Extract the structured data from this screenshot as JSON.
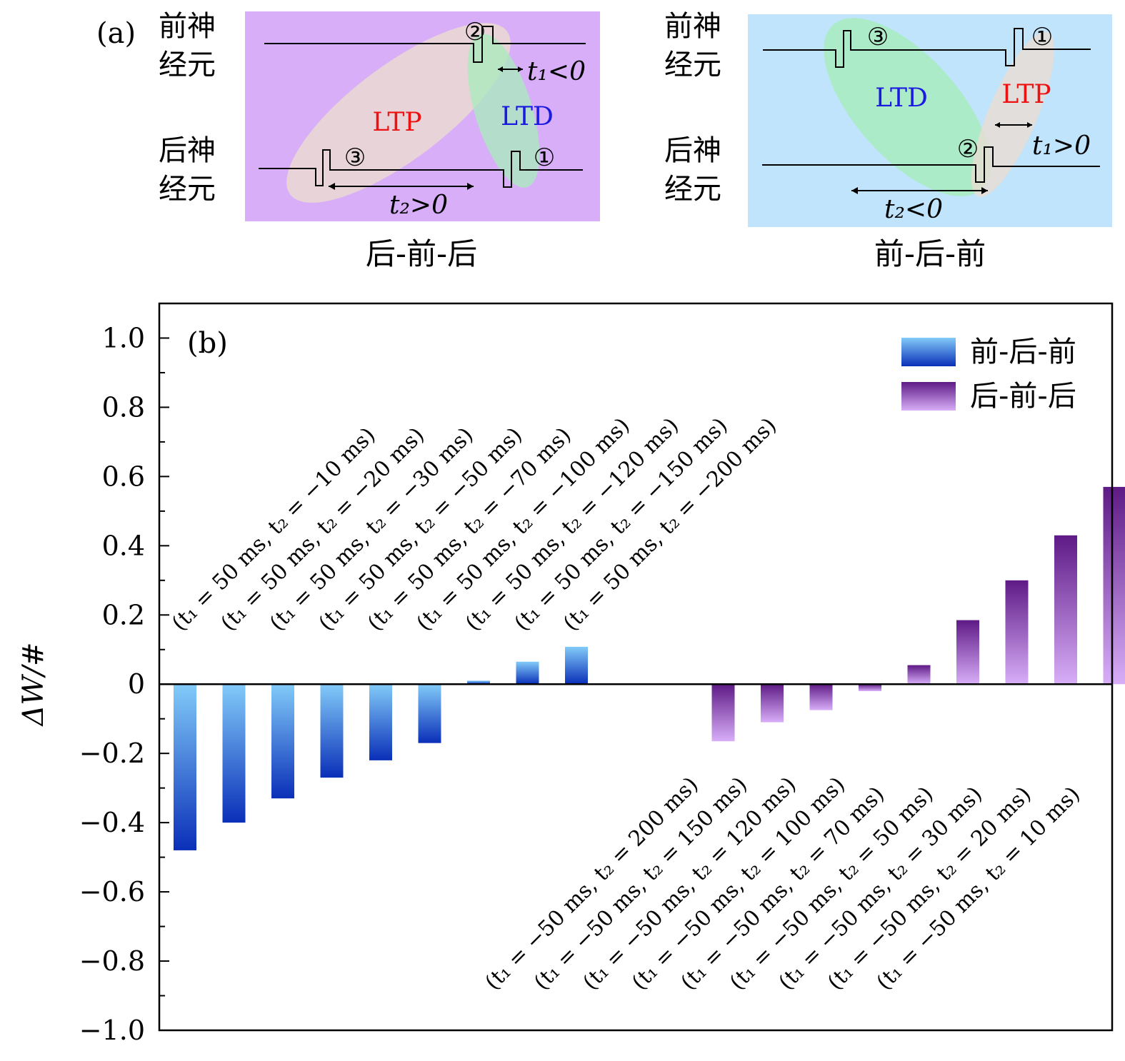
{
  "panel_a": {
    "label": "(a)",
    "colors": {
      "left_bg": "#d8aef8",
      "right_bg": "#bfe4fb",
      "ltp_text": "#ee1111",
      "ltd_text": "#1a1ae0",
      "ltp_ellipse": "#ecdcd0",
      "ltd_ellipse": "#a8ecbc"
    },
    "left": {
      "pre_label_line1": "前神",
      "pre_label_line2": "经元",
      "post_label_line1": "后神",
      "post_label_line2": "经元",
      "ltp": "LTP",
      "ltd": "LTD",
      "marker_1": "①",
      "marker_2": "②",
      "marker_3": "③",
      "t1_label": "t₁<0",
      "t2_label": "t₂>0",
      "caption": "后-前-后"
    },
    "right": {
      "pre_label_line1": "前神",
      "pre_label_line2": "经元",
      "post_label_line1": "后神",
      "post_label_line2": "经元",
      "ltp": "LTP",
      "ltd": "LTD",
      "marker_1": "①",
      "marker_2": "②",
      "marker_3": "③",
      "t1_label": "t₁>0",
      "t2_label": "t₂<0",
      "caption": "前-后-前"
    }
  },
  "chart_data": {
    "type": "bar",
    "panel_label": "(b)",
    "ylabel": "ΔW/#",
    "ylim": [
      -1.0,
      1.1
    ],
    "yticks": [
      -1.0,
      -0.8,
      -0.6,
      -0.4,
      -0.2,
      0,
      0.2,
      0.4,
      0.6,
      0.8,
      1.0
    ],
    "ytick_labels": [
      "−1.0",
      "−0.8",
      "−0.6",
      "−0.4",
      "−0.2",
      "0",
      "0.2",
      "0.4",
      "0.6",
      "0.8",
      "1.0"
    ],
    "legend_position": "top-right",
    "series": [
      {
        "name": "前-后-前",
        "color_light": "#82cbf9",
        "color_dark": "#0a2fb8",
        "categories": [
          "(t₁ = 50 ms, t₂ = −10 ms)",
          "(t₁ = 50 ms, t₂ = −20 ms)",
          "(t₁ = 50 ms, t₂ = −30 ms)",
          "(t₁ = 50 ms, t₂ = −50 ms)",
          "(t₁ = 50 ms, t₂ = −70 ms)",
          "(t₁ = 50 ms, t₂ = −100 ms)",
          "(t₁ = 50 ms, t₂ = −120 ms)",
          "(t₁ = 50 ms, t₂ = −150 ms)",
          "(t₁ = 50 ms, t₂ = −200 ms)"
        ],
        "values": [
          -0.48,
          -0.4,
          -0.33,
          -0.27,
          -0.22,
          -0.17,
          0.01,
          0.065,
          0.108
        ]
      },
      {
        "name": "后-前-后",
        "color_light": "#d8aef8",
        "color_dark": "#5e1a86",
        "categories": [
          "(t₁ = −50 ms, t₂ = 200 ms)",
          "(t₁ = −50 ms, t₂ = 150 ms)",
          "(t₁ = −50 ms, t₂ = 120 ms)",
          "(t₁ = −50 ms, t₂ = 100 ms)",
          "(t₁ = −50 ms, t₂ = 70 ms)",
          "(t₁ = −50 ms, t₂ = 50 ms)",
          "(t₁ = −50 ms, t₂ = 30 ms)",
          "(t₁ = −50 ms, t₂ = 20 ms)",
          "(t₁ = −50 ms, t₂ = 10 ms)"
        ],
        "values": [
          -0.165,
          -0.11,
          -0.075,
          -0.02,
          0.055,
          0.185,
          0.3,
          0.43,
          0.57
        ]
      }
    ]
  }
}
